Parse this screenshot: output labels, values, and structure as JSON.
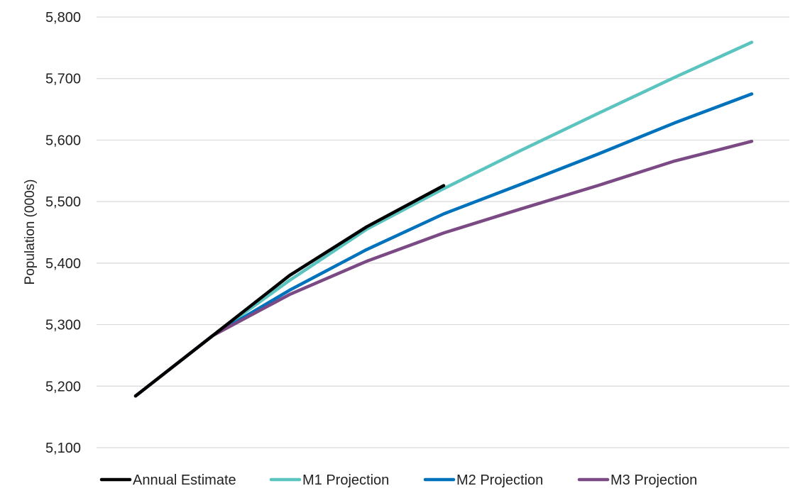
{
  "chart_data": {
    "type": "line",
    "title": "",
    "xlabel": "",
    "ylabel": "Population (000s)",
    "ylim": [
      5100,
      5800
    ],
    "yticks": [
      5100,
      5200,
      5300,
      5400,
      5500,
      5600,
      5700,
      5800
    ],
    "ytick_labels": [
      "5,100",
      "5,200",
      "5,300",
      "5,400",
      "5,500",
      "5,600",
      "5,700",
      "5,800"
    ],
    "x": [
      0,
      1,
      2,
      3,
      4,
      5,
      6,
      7,
      8
    ],
    "grid": true,
    "legend_position": "bottom",
    "series": [
      {
        "name": "Annual Estimate",
        "color": "#000000",
        "values": [
          5184,
          5282,
          5380,
          5459,
          5526,
          null,
          null,
          null,
          null
        ]
      },
      {
        "name": "M1 Projection",
        "color": "#5bc4bf",
        "values": [
          5184,
          5282,
          5372,
          5455,
          5521,
          5583,
          5643,
          5702,
          5759
        ]
      },
      {
        "name": "M2 Projection",
        "color": "#0072bc",
        "values": [
          5184,
          5282,
          5356,
          5422,
          5480,
          5528,
          5577,
          5628,
          5675
        ]
      },
      {
        "name": "M3 Projection",
        "color": "#7b4a85",
        "values": [
          5184,
          5282,
          5349,
          5403,
          5449,
          5488,
          5526,
          5566,
          5598
        ]
      }
    ]
  }
}
